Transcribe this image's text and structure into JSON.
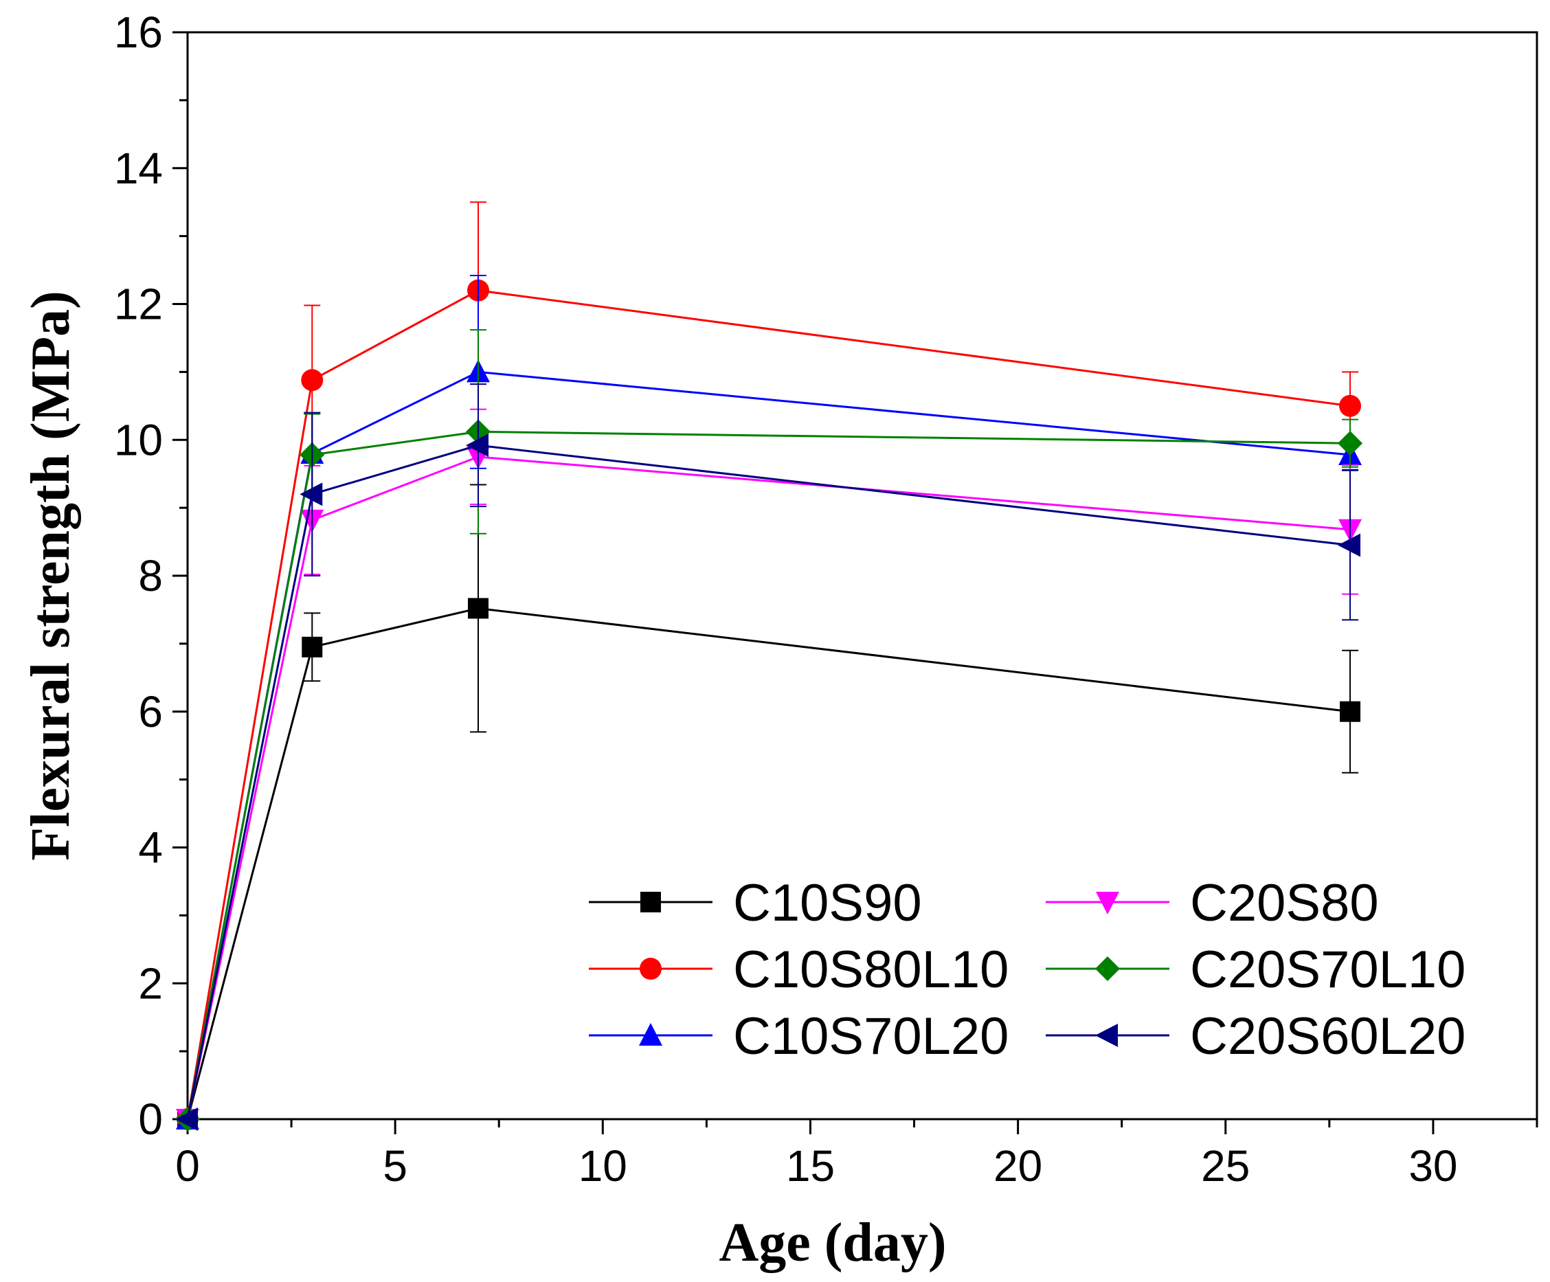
{
  "chart_data": {
    "type": "line",
    "title": "",
    "xlabel": "Age (day)",
    "ylabel": "Flexural strength (MPa)",
    "xlim": [
      0,
      32.5
    ],
    "ylim": [
      0,
      16
    ],
    "xticks": [
      0,
      5,
      10,
      15,
      20,
      25,
      30
    ],
    "yticks": [
      0,
      2,
      4,
      6,
      8,
      10,
      12,
      14,
      16
    ],
    "x": [
      0,
      3,
      7,
      28
    ],
    "legend_position": "bottom-right",
    "series": [
      {
        "name": "C10S90",
        "color": "#000000",
        "marker": "square",
        "values": [
          0,
          6.95,
          7.52,
          6.0
        ],
        "errors": [
          0,
          0.5,
          1.82,
          0.9
        ]
      },
      {
        "name": "C10S80L10",
        "color": "#ff0000",
        "marker": "circle",
        "values": [
          0,
          10.88,
          12.2,
          10.5
        ],
        "errors": [
          0,
          1.1,
          1.3,
          0.5
        ]
      },
      {
        "name": "C10S70L20",
        "color": "#0000ff",
        "marker": "triangle-up",
        "values": [
          0,
          9.8,
          11.0,
          9.78
        ],
        "errors": [
          0,
          0.6,
          1.42,
          0.22
        ]
      },
      {
        "name": "C20S80",
        "color": "#ff00ff",
        "marker": "triangle-down",
        "values": [
          0,
          8.82,
          9.75,
          8.68
        ],
        "errors": [
          0,
          0.8,
          0.7,
          0.95
        ]
      },
      {
        "name": "C20S70L10",
        "color": "#008000",
        "marker": "diamond",
        "values": [
          0,
          9.78,
          10.12,
          9.95
        ],
        "errors": [
          0,
          0.6,
          1.5,
          0.35
        ]
      },
      {
        "name": "C20S60L20",
        "color": "#000080",
        "marker": "triangle-left",
        "values": [
          0,
          9.2,
          9.92,
          8.45
        ],
        "errors": [
          0,
          1.2,
          0.9,
          1.1
        ]
      }
    ]
  }
}
